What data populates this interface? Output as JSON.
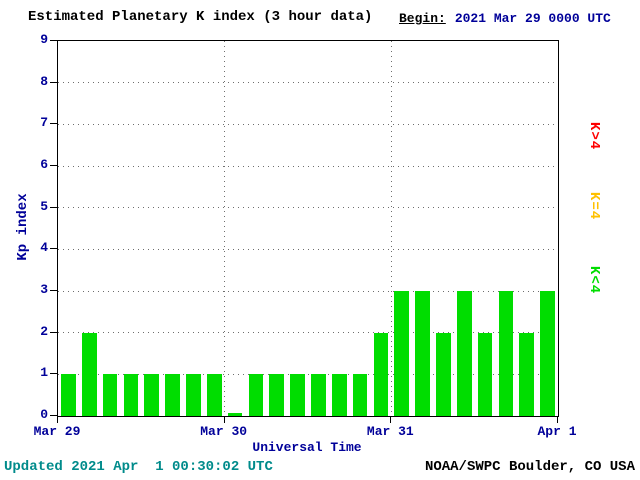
{
  "header": {
    "title": "Estimated Planetary K index (3 hour data)",
    "begin_label": "Begin:",
    "begin_value": "2021 Mar 29 0000 UTC"
  },
  "chart_data": {
    "type": "bar",
    "title": "Estimated Planetary K index (3 hour data)",
    "xlabel": "Universal Time",
    "ylabel": "Kp index",
    "ylim": [
      0,
      9
    ],
    "yticks": [
      0,
      1,
      2,
      3,
      4,
      5,
      6,
      7,
      8,
      9
    ],
    "xticks": [
      "Mar 29",
      "Mar 30",
      "Mar 31",
      "Apr 1"
    ],
    "bar_interval_hours": 3,
    "grid": true,
    "bar_color": "#00dd00",
    "values": [
      1,
      2,
      1,
      1,
      1,
      1,
      1,
      1,
      0,
      1,
      1,
      1,
      1,
      1,
      1,
      2,
      3,
      3,
      2,
      3,
      2,
      3,
      2,
      3
    ]
  },
  "legend": {
    "items": [
      {
        "label": "K>4",
        "color": "#ff0000"
      },
      {
        "label": "K=4",
        "color": "#ffc100"
      },
      {
        "label": "K<4",
        "color": "#00dd00"
      }
    ]
  },
  "footer": {
    "updated": "Updated 2021 Apr  1 00:30:02 UTC",
    "source": "NOAA/SWPC Boulder, CO USA"
  },
  "colors": {
    "axis_label": "#000099",
    "updated_text": "#008b8b",
    "bar_green": "#00dd00",
    "legend_red": "#ff0000",
    "legend_yellow": "#ffc100"
  }
}
